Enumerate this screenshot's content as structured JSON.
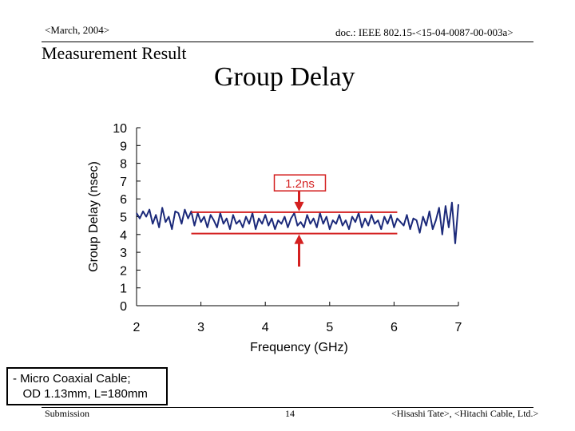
{
  "header": {
    "date": "<March, 2004>",
    "doc": "doc.: IEEE 802.15-<15-04-0087-00-003a>"
  },
  "section_title": "Measurement Result",
  "slide_title": "Group Delay",
  "chart_data": {
    "type": "line",
    "title": "Group Delay",
    "xlabel": "Frequency  (GHz)",
    "ylabel": "Group Delay  (nsec)",
    "xlim": [
      2,
      7
    ],
    "ylim": [
      0,
      10
    ],
    "xticks": [
      2,
      3,
      4,
      5,
      6,
      7
    ],
    "yticks": [
      0,
      1,
      2,
      3,
      4,
      5,
      6,
      7,
      8,
      9,
      10
    ],
    "grid": false,
    "series": [
      {
        "name": "Group delay",
        "color": "#1c2a7a",
        "x": [
          2.0,
          2.05,
          2.1,
          2.15,
          2.2,
          2.25,
          2.3,
          2.35,
          2.4,
          2.45,
          2.5,
          2.55,
          2.6,
          2.65,
          2.7,
          2.75,
          2.8,
          2.85,
          2.9,
          2.95,
          3.0,
          3.05,
          3.1,
          3.15,
          3.2,
          3.25,
          3.3,
          3.35,
          3.4,
          3.45,
          3.5,
          3.55,
          3.6,
          3.65,
          3.7,
          3.75,
          3.8,
          3.85,
          3.9,
          3.95,
          4.0,
          4.05,
          4.1,
          4.15,
          4.2,
          4.25,
          4.3,
          4.35,
          4.4,
          4.45,
          4.5,
          4.55,
          4.6,
          4.65,
          4.7,
          4.75,
          4.8,
          4.85,
          4.9,
          4.95,
          5.0,
          5.05,
          5.1,
          5.15,
          5.2,
          5.25,
          5.3,
          5.35,
          5.4,
          5.45,
          5.5,
          5.55,
          5.6,
          5.65,
          5.7,
          5.75,
          5.8,
          5.85,
          5.9,
          5.95,
          6.0,
          6.05,
          6.1,
          6.15,
          6.2,
          6.25,
          6.3,
          6.35,
          6.4,
          6.45,
          6.5,
          6.55,
          6.6,
          6.65,
          6.7,
          6.75,
          6.8,
          6.85,
          6.9,
          6.95,
          7.0
        ],
        "values": [
          5.2,
          4.9,
          5.3,
          5.0,
          5.4,
          4.6,
          5.1,
          4.4,
          5.5,
          4.7,
          5.0,
          4.3,
          5.3,
          5.2,
          4.6,
          5.4,
          4.9,
          5.3,
          4.5,
          5.2,
          4.7,
          5.0,
          4.4,
          5.1,
          4.8,
          4.4,
          5.2,
          4.6,
          4.9,
          4.3,
          5.1,
          4.6,
          4.8,
          4.4,
          5.0,
          4.6,
          5.2,
          4.3,
          4.9,
          4.6,
          5.1,
          4.5,
          4.9,
          4.3,
          4.8,
          4.6,
          5.0,
          4.4,
          4.9,
          5.2,
          4.5,
          4.7,
          4.4,
          5.1,
          4.6,
          4.9,
          4.4,
          5.2,
          4.6,
          5.0,
          4.3,
          4.8,
          4.6,
          5.1,
          4.5,
          4.8,
          4.3,
          5.0,
          4.7,
          5.2,
          4.4,
          4.9,
          4.5,
          5.1,
          4.6,
          4.8,
          4.3,
          5.0,
          4.6,
          5.1,
          4.4,
          4.9,
          4.7,
          4.5,
          5.1,
          4.3,
          4.9,
          4.8,
          4.1,
          5.0,
          4.5,
          5.3,
          4.3,
          4.8,
          5.5,
          4.0,
          5.6,
          4.4,
          5.8,
          3.5,
          5.7
        ]
      }
    ],
    "reference_lines": [
      {
        "name": "upper-limit",
        "y": 5.25,
        "x_range": [
          2.85,
          6.05
        ],
        "color": "#d42020"
      },
      {
        "name": "lower-limit",
        "y": 4.05,
        "x_range": [
          2.85,
          6.05
        ],
        "color": "#d42020"
      }
    ],
    "annotation": {
      "label": "1.2ns",
      "x": 4.5,
      "label_y": 6.9,
      "color": "#d42020"
    }
  },
  "note": {
    "line1": "- Micro Coaxial Cable;",
    "line2": "   OD 1.13mm, L=180mm"
  },
  "footer": {
    "left": "Submission",
    "page": "14",
    "right": "<Hisashi Tate>, <Hitachi Cable, Ltd.>"
  }
}
